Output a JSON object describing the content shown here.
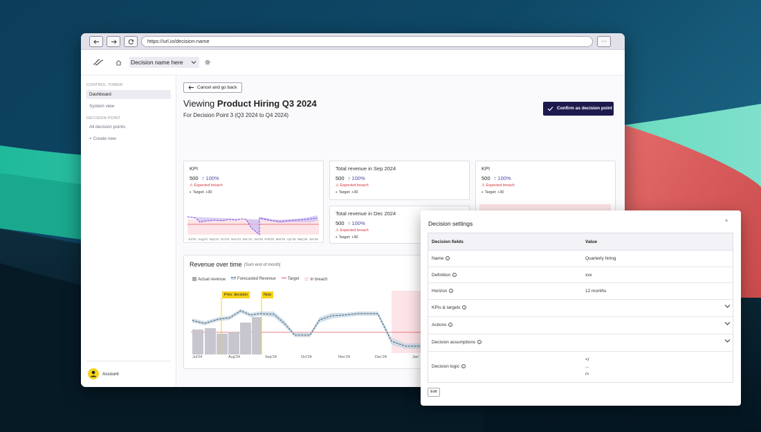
{
  "browser": {
    "url": "https://url.io/decision-name"
  },
  "header": {
    "decision_name": "Decision name here"
  },
  "sidebar": {
    "section_control": "CONTROL TOWER",
    "items_control": [
      {
        "label": "Dashboard",
        "active": true
      },
      {
        "label": "System view",
        "active": false
      }
    ],
    "section_decision": "DECISION POINT",
    "items_decision": [
      {
        "label": "All decision points"
      },
      {
        "label": "+ Create new"
      }
    ],
    "account_label": "Account"
  },
  "main": {
    "back_label": "Cancel and go back",
    "title_prefix": "Viewing",
    "title_bold": "Product Hiring Q3 2024",
    "subtitle": "For Decision Point 3 (Q3 2024 to Q4 2024)",
    "confirm_label": "Confirm as decision point"
  },
  "cards": [
    {
      "title": "KPI",
      "value": "500",
      "change": "100%",
      "breach": "Expected breach",
      "target": "Target: +30"
    },
    {
      "title": "Total revenue in Sep 2024",
      "value": "500",
      "change": "100%",
      "breach": "Expected breach",
      "target": "Target: +30"
    },
    {
      "title": "Total revenue in Dec 2024",
      "value": "500",
      "change": "100%",
      "breach": "Expected breach",
      "target": "Target: +30"
    },
    {
      "title": "KPI",
      "value": "500",
      "change": "100%",
      "breach": "Expected breach",
      "target": "Target: +30"
    }
  ],
  "mini_months": [
    "Jul'24",
    "Aug'24",
    "Sep'24",
    "Oct'24",
    "Nov'24",
    "Dec'24",
    "Jan'25",
    "Feb'25",
    "Mar'25",
    "Apr'25",
    "May'25",
    "Jun'25"
  ],
  "revenue": {
    "title": "Revenue over time",
    "subtitle": "[Sum end of month]",
    "legend": [
      "Actual revenue",
      "Forecasted Revenue",
      "Target",
      "In breach"
    ],
    "prev_decision_label": "Prev. decision",
    "now_label": "Now",
    "xlabels": [
      "Jul'24",
      "Aug'24",
      "Sep'24",
      "Oct'24",
      "Nov'24",
      "Dec'24",
      "Jan'"
    ]
  },
  "modal": {
    "title": "Decision settings",
    "close": "×",
    "col_fields": "Decision fields",
    "col_value": "Value",
    "rows": [
      {
        "field": "Name",
        "value": "Quarterly hiring",
        "expand": false
      },
      {
        "field": "Definition",
        "value": "xxx",
        "expand": false
      },
      {
        "field": "Horizon",
        "value": "12 months",
        "expand": false
      },
      {
        "field": "KPIs & targets",
        "value": "",
        "expand": true
      },
      {
        "field": "Actions",
        "value": "",
        "expand": true
      },
      {
        "field": "Decision assumptions",
        "value": "",
        "expand": true
      }
    ],
    "logic_field": "Decision logic",
    "logic_lines": [
      "</",
      "...",
      "/>"
    ],
    "edit_label": "Edit"
  },
  "colors": {
    "accent": "#1d1a4e",
    "purple_line": "#7b5ce0",
    "teal_line": "#3fae9f",
    "breach_fill": "#fde4e8",
    "target_line": "#e0525c",
    "highlight": "#f6d21a"
  }
}
